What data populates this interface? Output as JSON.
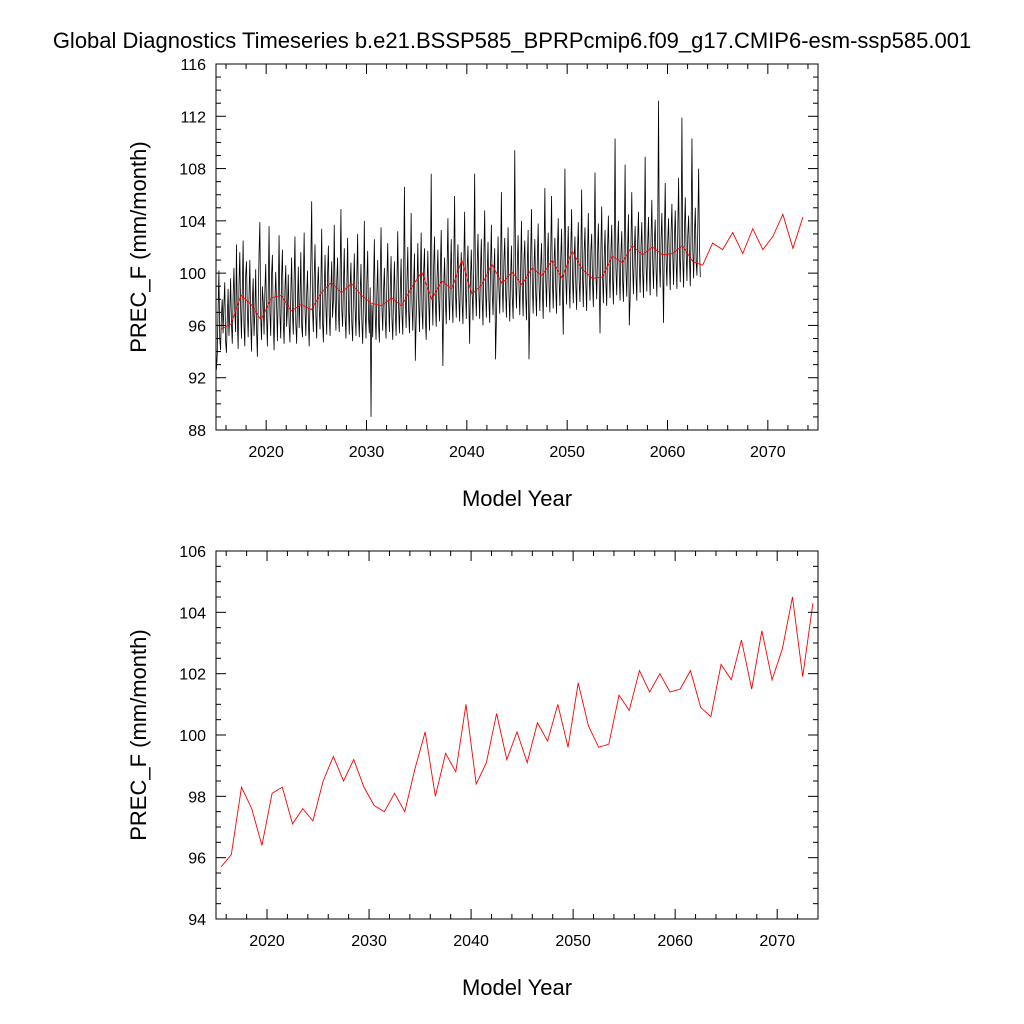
{
  "figure": {
    "title": "Global Diagnostics Timeseries b.e21.BSSP585_BPRPcmip6.f09_g17.CMIP6-esm-ssp585.001"
  },
  "colors": {
    "monthly_series": "#000000",
    "annual_series": "#ff0000",
    "axes": "#000000",
    "background": "#ffffff"
  },
  "chart_data": [
    {
      "type": "line",
      "xlabel": "Model Year",
      "ylabel": "PREC_F (mm/month)",
      "xlim": [
        2015,
        2075
      ],
      "ylim": [
        88,
        116
      ],
      "x_ticks": [
        2020,
        2030,
        2040,
        2050,
        2060,
        2070
      ],
      "y_ticks": [
        88,
        92,
        96,
        100,
        104,
        108,
        112,
        116
      ],
      "grid": false,
      "series": [
        {
          "color": "#000000",
          "description_shown": "monthly values",
          "x_start": 2015.04,
          "x_step": 0.0833,
          "values": [
            92.6,
            93.8,
            97.2,
            100.2,
            95.0,
            94.1,
            96.8,
            98.0,
            95.4,
            97.6,
            99.3,
            94.8,
            93.9,
            96.5,
            98.8,
            95.2,
            97.0,
            99.6,
            96.1,
            94.6,
            98.2,
            100.4,
            97.1,
            95.5,
            102.2,
            96.7,
            94.2,
            99.0,
            101.6,
            97.3,
            95.0,
            98.8,
            102.5,
            96.0,
            94.4,
            99.8,
            100.9,
            97.2,
            95.1,
            98.1,
            101.0,
            96.4,
            94.0,
            97.8,
            99.6,
            95.2,
            96.9,
            100.3,
            95.8,
            93.6,
            97.4,
            101.5,
            103.9,
            96.6,
            94.9,
            99.0,
            97.8,
            95.3,
            98.6,
            100.7,
            96.8,
            94.4,
            98.5,
            103.6,
            97.0,
            95.2,
            99.9,
            101.4,
            96.5,
            94.1,
            97.9,
            100.1,
            97.6,
            94.8,
            98.4,
            102.9,
            96.8,
            95.0,
            99.7,
            101.8,
            96.3,
            94.6,
            98.8,
            100.6,
            95.9,
            97.2,
            99.9,
            96.1,
            94.7,
            98.4,
            101.2,
            97.0,
            95.3,
            99.5,
            102.8,
            96.2,
            94.6,
            97.7,
            100.5,
            95.8,
            97.9,
            101.6,
            96.0,
            95.1,
            99.2,
            103.1,
            97.3,
            95.2,
            98.3,
            100.2,
            96.5,
            94.4,
            97.9,
            101.0,
            105.5,
            97.2,
            95.5,
            99.7,
            102.2,
            96.8,
            95.0,
            98.9,
            100.5,
            97.4,
            95.7,
            99.2,
            103.4,
            96.3,
            94.7,
            98.6,
            101.4,
            97.5,
            95.3,
            99.9,
            102.1,
            96.8,
            95.2,
            98.7,
            100.9,
            96.6,
            97.9,
            103.7,
            98.2,
            95.6,
            99.4,
            101.2,
            97.0,
            95.5,
            99.8,
            104.9,
            97.2,
            95.9,
            99.1,
            101.9,
            96.7,
            95.0,
            98.8,
            102.7,
            97.5,
            95.3,
            99.0,
            100.8,
            96.2,
            94.8,
            98.5,
            101.5,
            97.3,
            95.2,
            99.6,
            103.0,
            96.8,
            95.1,
            98.3,
            100.7,
            96.4,
            94.6,
            98.0,
            104.0,
            97.1,
            95.0,
            99.3,
            101.7,
            96.6,
            95.4,
            98.9,
            89.0,
            97.6,
            95.1,
            99.1,
            102.6,
            96.9,
            94.9,
            98.4,
            101.0,
            96.1,
            94.7,
            99.7,
            103.5,
            97.4,
            95.6,
            98.7,
            100.4,
            96.5,
            95.0,
            99.5,
            102.3,
            97.8,
            95.5,
            98.8,
            101.3,
            96.6,
            94.9,
            98.4,
            100.9,
            97.1,
            95.2,
            99.3,
            103.2,
            97.4,
            95.4,
            98.6,
            101.1,
            96.9,
            95.3,
            99.9,
            106.6,
            98.0,
            95.8,
            99.4,
            102.0,
            97.1,
            95.4,
            98.9,
            104.6,
            97.7,
            95.6,
            99.2,
            101.5,
            93.3,
            96.3,
            98.7,
            102.3,
            97.8,
            95.5,
            99.5,
            103.1,
            97.1,
            95.7,
            100.2,
            101.9,
            96.5,
            94.9,
            98.9,
            101.7,
            97.8,
            95.6,
            99.8,
            107.6,
            98.6,
            96.0,
            100.6,
            102.8,
            97.7,
            95.9,
            99.6,
            101.8,
            98.0,
            96.3,
            100.4,
            103.3,
            97.5,
            92.9,
            99.0,
            101.2,
            97.9,
            96.1,
            100.3,
            104.2,
            98.4,
            96.4,
            99.8,
            102.6,
            97.9,
            96.2,
            100.9,
            105.9,
            98.6,
            96.6,
            100.1,
            102.2,
            98.3,
            96.3,
            99.5,
            101.6,
            97.7,
            96.1,
            100.7,
            104.7,
            98.9,
            96.5,
            100.3,
            102.1,
            98.1,
            94.6,
            99.6,
            101.8,
            98.5,
            96.4,
            100.9,
            107.6,
            98.8,
            96.7,
            100.5,
            103.0,
            98.6,
            96.5,
            100.2,
            102.6,
            97.9,
            96.0,
            101.3,
            104.8,
            98.7,
            96.6,
            99.9,
            102.4,
            98.0,
            96.2,
            100.5,
            103.7,
            98.5,
            96.8,
            100.1,
            101.9,
            93.4,
            96.4,
            99.3,
            102.8,
            98.9,
            96.9,
            100.6,
            106.2,
            99.1,
            97.0,
            100.9,
            102.7,
            98.7,
            96.6,
            100.2,
            103.5,
            98.4,
            96.3,
            99.7,
            102.1,
            98.2,
            96.5,
            101.4,
            109.4,
            99.4,
            97.3,
            100.6,
            102.9,
            99.0,
            96.8,
            100.3,
            104.0,
            98.8,
            96.7,
            101.0,
            102.5,
            98.4,
            96.4,
            100.7,
            103.3,
            93.4,
            97.2,
            101.2,
            104.9,
            99.1,
            96.9,
            100.4,
            102.6,
            98.6,
            96.7,
            101.0,
            103.8,
            99.2,
            97.1,
            100.5,
            102.3,
            98.7,
            96.5,
            101.3,
            106.5,
            99.5,
            97.4,
            100.9,
            103.1,
            99.0,
            97.0,
            101.5,
            105.9,
            99.4,
            97.3,
            100.8,
            102.7,
            98.9,
            96.9,
            101.6,
            104.2,
            99.6,
            97.5,
            101.1,
            103.4,
            98.8,
            95.3,
            101.4,
            108.0,
            99.7,
            97.6,
            101.2,
            103.6,
            99.3,
            97.3,
            101.8,
            104.9,
            99.8,
            97.7,
            100.9,
            102.8,
            99.1,
            97.2,
            101.5,
            103.9,
            99.5,
            97.8,
            101.0,
            106.4,
            99.9,
            97.4,
            101.6,
            103.5,
            99.2,
            97.1,
            101.3,
            104.6,
            100.0,
            97.9,
            101.7,
            103.0,
            99.4,
            97.4,
            101.9,
            107.7,
            100.1,
            98.0,
            101.4,
            103.8,
            99.6,
            95.4,
            101.7,
            105.1,
            99.8,
            97.7,
            101.2,
            103.3,
            99.3,
            97.5,
            101.8,
            104.4,
            100.2,
            98.1,
            101.6,
            103.7,
            99.7,
            97.6,
            102.1,
            110.3,
            100.4,
            98.3,
            101.8,
            104.0,
            100.0,
            97.9,
            101.5,
            103.2,
            99.5,
            97.8,
            102.3,
            108.3,
            100.3,
            98.2,
            101.9,
            104.5,
            96.0,
            98.0,
            102.2,
            106.2,
            100.5,
            98.4,
            101.6,
            103.6,
            99.9,
            97.9,
            102.4,
            104.7,
            100.6,
            98.5,
            102.0,
            103.9,
            100.1,
            98.1,
            102.5,
            108.9,
            100.8,
            98.6,
            102.2,
            104.3,
            100.2,
            98.3,
            102.6,
            105.6,
            100.9,
            98.8,
            102.3,
            104.1,
            100.4,
            98.2,
            102.8,
            113.2,
            101.0,
            98.9,
            102.5,
            104.6,
            100.5,
            96.2,
            102.9,
            106.9,
            101.2,
            99.0,
            102.4,
            104.2,
            100.7,
            98.7,
            103.0,
            105.3,
            101.4,
            99.1,
            102.6,
            104.8,
            101.0,
            98.8,
            103.1,
            107.3,
            101.5,
            99.3,
            102.8,
            111.9,
            101.1,
            98.9,
            103.3,
            105.8,
            101.7,
            99.4,
            102.9,
            104.4,
            101.2,
            99.0,
            103.4,
            110.3,
            101.8,
            99.6,
            103.0,
            105.0,
            100.9,
            99.8,
            103.6,
            108.0,
            102.0,
            99.7
          ]
        },
        {
          "color": "#ff0000",
          "description_shown": "annual means",
          "x": [
            2015.5,
            2016.5,
            2017.5,
            2018.5,
            2019.5,
            2020.5,
            2021.5,
            2022.5,
            2023.5,
            2024.5,
            2025.5,
            2026.5,
            2027.5,
            2028.5,
            2029.5,
            2030.5,
            2031.5,
            2032.5,
            2033.5,
            2034.5,
            2035.5,
            2036.5,
            2037.5,
            2038.5,
            2039.5,
            2040.5,
            2041.5,
            2042.5,
            2043.5,
            2044.5,
            2045.5,
            2046.5,
            2047.5,
            2048.5,
            2049.5,
            2050.5,
            2051.5,
            2052.5,
            2053.5,
            2054.5,
            2055.5,
            2056.5,
            2057.5,
            2058.5,
            2059.5,
            2060.5,
            2061.5,
            2062.5,
            2063.5,
            2064.5,
            2065.5,
            2066.5,
            2067.5,
            2068.5,
            2069.5,
            2070.5,
            2071.5,
            2072.5,
            2073.5
          ],
          "values": [
            95.7,
            96.1,
            98.3,
            97.6,
            96.4,
            98.1,
            98.3,
            97.1,
            97.6,
            97.2,
            98.5,
            99.3,
            98.5,
            99.2,
            98.3,
            97.7,
            97.5,
            98.1,
            97.5,
            98.9,
            100.1,
            98.0,
            99.4,
            98.8,
            101.0,
            98.4,
            99.1,
            100.7,
            99.2,
            100.1,
            99.1,
            100.4,
            99.8,
            101.0,
            99.6,
            101.7,
            100.3,
            99.6,
            99.7,
            101.3,
            100.8,
            102.1,
            101.4,
            102.0,
            101.4,
            101.5,
            102.1,
            100.9,
            100.6,
            102.3,
            101.8,
            103.1,
            101.5,
            103.4,
            101.8,
            102.8,
            104.5,
            101.9,
            104.3
          ]
        }
      ]
    },
    {
      "type": "line",
      "xlabel": "Model Year",
      "ylabel": "PREC_F (mm/month)",
      "xlim": [
        2015,
        2074
      ],
      "ylim": [
        94,
        106
      ],
      "x_ticks": [
        2020,
        2030,
        2040,
        2050,
        2060,
        2070
      ],
      "y_ticks": [
        94,
        96,
        98,
        100,
        102,
        104,
        106
      ],
      "grid": false,
      "series": [
        {
          "color": "#ff0000",
          "description_shown": "annual means",
          "x": [
            2015.5,
            2016.5,
            2017.5,
            2018.5,
            2019.5,
            2020.5,
            2021.5,
            2022.5,
            2023.5,
            2024.5,
            2025.5,
            2026.5,
            2027.5,
            2028.5,
            2029.5,
            2030.5,
            2031.5,
            2032.5,
            2033.5,
            2034.5,
            2035.5,
            2036.5,
            2037.5,
            2038.5,
            2039.5,
            2040.5,
            2041.5,
            2042.5,
            2043.5,
            2044.5,
            2045.5,
            2046.5,
            2047.5,
            2048.5,
            2049.5,
            2050.5,
            2051.5,
            2052.5,
            2053.5,
            2054.5,
            2055.5,
            2056.5,
            2057.5,
            2058.5,
            2059.5,
            2060.5,
            2061.5,
            2062.5,
            2063.5,
            2064.5,
            2065.5,
            2066.5,
            2067.5,
            2068.5,
            2069.5,
            2070.5,
            2071.5,
            2072.5,
            2073.5
          ],
          "values": [
            95.7,
            96.1,
            98.3,
            97.6,
            96.4,
            98.1,
            98.3,
            97.1,
            97.6,
            97.2,
            98.5,
            99.3,
            98.5,
            99.2,
            98.3,
            97.7,
            97.5,
            98.1,
            97.5,
            98.9,
            100.1,
            98.0,
            99.4,
            98.8,
            101.0,
            98.4,
            99.1,
            100.7,
            99.2,
            100.1,
            99.1,
            100.4,
            99.8,
            101.0,
            99.6,
            101.7,
            100.3,
            99.6,
            99.7,
            101.3,
            100.8,
            102.1,
            101.4,
            102.0,
            101.4,
            101.5,
            102.1,
            100.9,
            100.6,
            102.3,
            101.8,
            103.1,
            101.5,
            103.4,
            101.8,
            102.8,
            104.5,
            101.9,
            104.3
          ]
        }
      ]
    }
  ]
}
